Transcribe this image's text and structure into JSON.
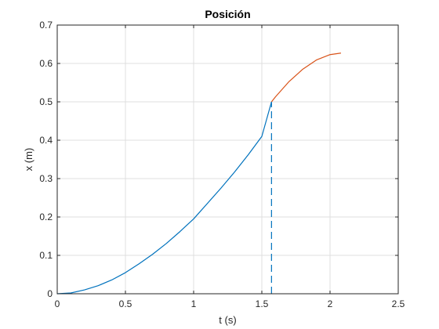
{
  "chart_data": {
    "type": "line",
    "title": "Posición",
    "xlabel": "t (s)",
    "ylabel": "x (m)",
    "xlim": [
      0,
      2.5
    ],
    "ylim": [
      0,
      0.7
    ],
    "xticks": [
      "0",
      "0.5",
      "1",
      "1.5",
      "2",
      "2.5"
    ],
    "yticks": [
      "0",
      "0.1",
      "0.2",
      "0.3",
      "0.4",
      "0.5",
      "0.6",
      "0.7"
    ],
    "grid": true,
    "series": [
      {
        "color": "#0072BD",
        "style": "solid",
        "x": [
          0,
          0.1,
          0.2,
          0.3,
          0.4,
          0.5,
          0.6,
          0.7,
          0.8,
          0.9,
          1.0,
          1.1,
          1.2,
          1.3,
          1.4,
          1.5,
          1.571
        ],
        "y": [
          0,
          0.002,
          0.01,
          0.021,
          0.036,
          0.055,
          0.078,
          0.103,
          0.131,
          0.162,
          0.195,
          0.235,
          0.275,
          0.317,
          0.362,
          0.41,
          0.5
        ]
      },
      {
        "color": "#D95319",
        "style": "solid",
        "x": [
          1.571,
          1.6,
          1.7,
          1.8,
          1.9,
          2.0,
          2.08
        ],
        "y": [
          0.5,
          0.513,
          0.553,
          0.585,
          0.609,
          0.623,
          0.627
        ]
      },
      {
        "color": "#0072BD",
        "style": "dashed",
        "x": [
          1.571,
          1.571
        ],
        "y": [
          0,
          0.5
        ]
      }
    ]
  }
}
